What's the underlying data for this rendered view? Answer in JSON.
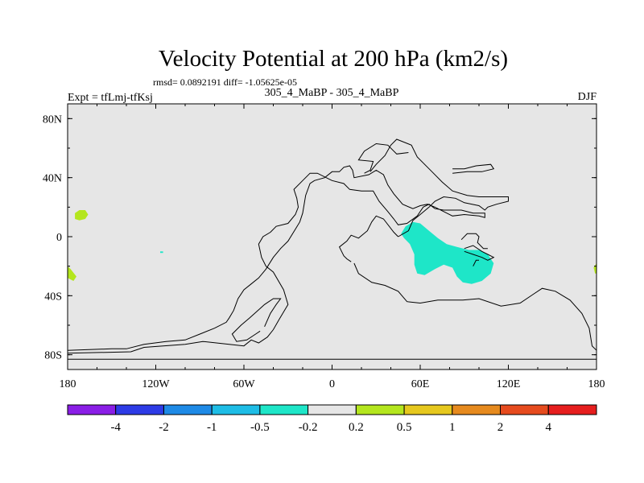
{
  "chart_data": {
    "type": "contour-map",
    "title": "Velocity Potential at 200 hPa (km2/s)",
    "stats_line": "rmsd= 0.0892191 diff= -1.05625e-05",
    "experiment": "Expt = tfLmj-tfKsj",
    "subtitle": "305_4_MaBP - 305_4_MaBP",
    "season": "DJF",
    "longitude_range": [
      -180,
      180
    ],
    "latitude_range": [
      -90,
      90
    ],
    "x_ticks": [
      {
        "value": -180,
        "label": "180"
      },
      {
        "value": -120,
        "label": "120W"
      },
      {
        "value": -60,
        "label": "60W"
      },
      {
        "value": 0,
        "label": "0"
      },
      {
        "value": 60,
        "label": "60E"
      },
      {
        "value": 120,
        "label": "120E"
      },
      {
        "value": 180,
        "label": "180"
      }
    ],
    "y_ticks": [
      {
        "value": 80,
        "label": "80N"
      },
      {
        "value": 40,
        "label": "40N"
      },
      {
        "value": 0,
        "label": "0"
      },
      {
        "value": -40,
        "label": "40S"
      },
      {
        "value": -80,
        "label": "80S"
      }
    ],
    "background_color": "#e6e6e6",
    "colorbar": {
      "colors": [
        "#8a1ee6",
        "#2d3be6",
        "#1e8ae6",
        "#1ebde6",
        "#1ee6c8",
        "#e6e6e6",
        "#b4e61e",
        "#e6c81e",
        "#e68a1e",
        "#e64b1e",
        "#e61e1e"
      ],
      "labels": [
        "-4",
        "-2",
        "-1",
        "-0.5",
        "-0.2",
        "0.2",
        "0.5",
        "1",
        "2",
        "4"
      ]
    },
    "shaded_regions": [
      {
        "name": "teal-anomaly-indian-ocean",
        "color": "#1ee6c8",
        "range": "-0.5 to -0.2",
        "polygon_lonlat": [
          [
            47,
            2
          ],
          [
            50,
            7
          ],
          [
            55,
            10
          ],
          [
            60,
            9
          ],
          [
            66,
            4
          ],
          [
            72,
            -1
          ],
          [
            78,
            -5
          ],
          [
            85,
            -7
          ],
          [
            93,
            -9
          ],
          [
            100,
            -9
          ],
          [
            106,
            -12
          ],
          [
            110,
            -18
          ],
          [
            108,
            -25
          ],
          [
            102,
            -30
          ],
          [
            95,
            -32
          ],
          [
            89,
            -31
          ],
          [
            85,
            -27
          ],
          [
            82,
            -21
          ],
          [
            76,
            -19
          ],
          [
            70,
            -22
          ],
          [
            63,
            -26
          ],
          [
            58,
            -25
          ],
          [
            56,
            -19
          ],
          [
            56,
            -12
          ],
          [
            53,
            -5
          ],
          [
            49,
            -1
          ]
        ]
      },
      {
        "name": "green-blob-north-pacific",
        "color": "#b4e61e",
        "range": "0.2 to 0.5",
        "polygon_lonlat": [
          [
            -175,
            16
          ],
          [
            -172,
            18
          ],
          [
            -168,
            18
          ],
          [
            -166,
            15
          ],
          [
            -168,
            12
          ],
          [
            -172,
            11
          ],
          [
            -175,
            12
          ]
        ]
      },
      {
        "name": "green-blob-south-pacific-west",
        "color": "#b4e61e",
        "range": "0.2 to 0.5",
        "polygon_lonlat": [
          [
            -180,
            -20
          ],
          [
            -178,
            -22
          ],
          [
            -174,
            -27
          ],
          [
            -176,
            -30
          ],
          [
            -180,
            -28
          ]
        ]
      },
      {
        "name": "green-blob-dateline-east",
        "color": "#b4e61e",
        "range": "0.2 to 0.5",
        "polygon_lonlat": [
          [
            180,
            -18
          ],
          [
            178,
            -21
          ],
          [
            179,
            -25
          ],
          [
            180,
            -25
          ]
        ]
      },
      {
        "name": "teal-speck-pacific",
        "color": "#1ee6c8",
        "range": "-0.5 to -0.2",
        "polygon_lonlat": [
          [
            -117,
            -10
          ],
          [
            -115,
            -10
          ],
          [
            -115,
            -11
          ],
          [
            -117,
            -11
          ]
        ]
      }
    ],
    "outlines_lonlat": [
      [
        [
          -180,
          -79
        ],
        [
          -137,
          -78
        ],
        [
          -128,
          -75
        ],
        [
          -100,
          -73
        ],
        [
          -88,
          -71
        ],
        [
          -70,
          -73
        ],
        [
          -60,
          -74
        ],
        [
          -55,
          -70
        ],
        [
          -50,
          -72
        ],
        [
          -44,
          -68
        ],
        [
          -40,
          -63
        ],
        [
          -36,
          -56
        ],
        [
          -30,
          -46
        ],
        [
          -33,
          -36
        ],
        [
          -40,
          -24
        ],
        [
          -45,
          -20
        ],
        [
          -48,
          -14
        ],
        [
          -50,
          -5
        ],
        [
          -47,
          0
        ],
        [
          -42,
          3
        ],
        [
          -38,
          7
        ],
        [
          -30,
          9
        ],
        [
          -25,
          15
        ],
        [
          -23,
          20
        ],
        [
          -24,
          26
        ],
        [
          -26,
          32
        ],
        [
          -20,
          38
        ],
        [
          -15,
          43
        ],
        [
          -10,
          43
        ],
        [
          0,
          38
        ],
        [
          8,
          36
        ],
        [
          12,
          32
        ],
        [
          20,
          31
        ],
        [
          28,
          31
        ],
        [
          32,
          24
        ],
        [
          38,
          17
        ],
        [
          42,
          12
        ],
        [
          45,
          8
        ],
        [
          51,
          9
        ],
        [
          58,
          14
        ],
        [
          62,
          20
        ],
        [
          66,
          22
        ],
        [
          70,
          19
        ],
        [
          76,
          18
        ],
        [
          80,
          18
        ],
        [
          88,
          18
        ],
        [
          96,
          16
        ],
        [
          104,
          16
        ],
        [
          104,
          13
        ],
        [
          100,
          14
        ],
        [
          90,
          15
        ],
        [
          82,
          14
        ],
        [
          76,
          17
        ],
        [
          70,
          20
        ],
        [
          65,
          22
        ],
        [
          60,
          21
        ],
        [
          55,
          19
        ],
        [
          48,
          22
        ],
        [
          42,
          29
        ],
        [
          38,
          35
        ],
        [
          35,
          42
        ],
        [
          30,
          45
        ],
        [
          25,
          42
        ],
        [
          15,
          40
        ],
        [
          14,
          45
        ],
        [
          12,
          48
        ],
        [
          8,
          47
        ],
        [
          5,
          44
        ],
        [
          0,
          44
        ],
        [
          -5,
          40
        ],
        [
          -12,
          38
        ],
        [
          -15,
          36
        ],
        [
          -18,
          28
        ],
        [
          -20,
          16
        ],
        [
          -22,
          10
        ],
        [
          -25,
          5
        ],
        [
          -30,
          -3
        ],
        [
          -35,
          -8
        ],
        [
          -40,
          -14
        ],
        [
          -45,
          -22
        ],
        [
          -50,
          -28
        ],
        [
          -55,
          -32
        ],
        [
          -60,
          -36
        ],
        [
          -64,
          -42
        ],
        [
          -67,
          -50
        ],
        [
          -70,
          -55
        ],
        [
          -72,
          -58
        ],
        [
          -80,
          -62
        ],
        [
          -90,
          -66
        ],
        [
          -100,
          -70
        ],
        [
          -113,
          -71
        ],
        [
          -128,
          -73
        ],
        [
          -140,
          -76
        ],
        [
          -150,
          -76
        ],
        [
          -180,
          -77
        ]
      ],
      [
        [
          -180,
          -83
        ],
        [
          180,
          -83
        ]
      ],
      [
        [
          -46,
          -61
        ],
        [
          -42,
          -52
        ],
        [
          -38,
          -46
        ],
        [
          -35,
          -42
        ],
        [
          -40,
          -42
        ],
        [
          -46,
          -46
        ],
        [
          -56,
          -55
        ],
        [
          -62,
          -60
        ],
        [
          -68,
          -66
        ],
        [
          -65,
          -71
        ],
        [
          -58,
          -70
        ],
        [
          -52,
          -66
        ],
        [
          -49,
          -64
        ]
      ],
      [
        [
          15,
          -18
        ],
        [
          18,
          -25
        ],
        [
          27,
          -31
        ],
        [
          36,
          -33
        ],
        [
          45,
          -37
        ],
        [
          51,
          -44
        ],
        [
          60,
          -45
        ],
        [
          72,
          -43
        ],
        [
          78,
          -43
        ],
        [
          89,
          -43
        ],
        [
          100,
          -42
        ],
        [
          115,
          -47
        ],
        [
          128,
          -45
        ],
        [
          137,
          -39
        ],
        [
          143,
          -35
        ],
        [
          152,
          -37
        ],
        [
          162,
          -43
        ],
        [
          170,
          -52
        ],
        [
          175,
          -62
        ],
        [
          177,
          -74
        ],
        [
          180,
          -77
        ]
      ],
      [
        [
          13,
          -17
        ],
        [
          10,
          -15
        ],
        [
          8,
          -13
        ],
        [
          5,
          -7
        ],
        [
          10,
          -3
        ],
        [
          13,
          1
        ],
        [
          18,
          -1
        ],
        [
          24,
          4
        ],
        [
          27,
          10
        ],
        [
          30,
          14
        ],
        [
          35,
          12
        ],
        [
          42,
          3
        ],
        [
          45,
          0
        ]
      ],
      [
        [
          45,
          0
        ],
        [
          52,
          4
        ],
        [
          55,
          11
        ],
        [
          60,
          15
        ],
        [
          66,
          20
        ],
        [
          70,
          24
        ],
        [
          76,
          27
        ],
        [
          84,
          26
        ],
        [
          90,
          23
        ],
        [
          100,
          21
        ],
        [
          104,
          18
        ],
        [
          106,
          20
        ],
        [
          112,
          22
        ],
        [
          120,
          24
        ],
        [
          120,
          27
        ],
        [
          110,
          27
        ],
        [
          100,
          27
        ],
        [
          92,
          28
        ],
        [
          82,
          31
        ],
        [
          75,
          37
        ],
        [
          68,
          44
        ],
        [
          58,
          54
        ],
        [
          54,
          62
        ],
        [
          44,
          66
        ],
        [
          40,
          62
        ],
        [
          36,
          55
        ],
        [
          30,
          49
        ],
        [
          26,
          44
        ]
      ],
      [
        [
          90,
          -8
        ],
        [
          96,
          -6
        ],
        [
          102,
          -10
        ],
        [
          106,
          -12
        ],
        [
          110,
          -14
        ],
        [
          106,
          -16
        ],
        [
          102,
          -14
        ],
        [
          96,
          -12
        ],
        [
          90,
          -10
        ]
      ],
      [
        [
          88,
          -2
        ],
        [
          92,
          2
        ],
        [
          98,
          2
        ],
        [
          100,
          0
        ],
        [
          99,
          -4
        ],
        [
          103,
          -8
        ],
        [
          106,
          -8
        ]
      ],
      [
        [
          82,
          46
        ],
        [
          90,
          46
        ],
        [
          98,
          48
        ],
        [
          108,
          49
        ],
        [
          110,
          46
        ],
        [
          102,
          44
        ],
        [
          92,
          44
        ],
        [
          82,
          43
        ]
      ],
      [
        [
          52,
          57
        ],
        [
          44,
          56
        ],
        [
          38,
          62
        ],
        [
          30,
          63
        ],
        [
          22,
          58
        ],
        [
          18,
          52
        ],
        [
          28,
          51
        ],
        [
          26,
          45
        ],
        [
          22,
          43
        ]
      ],
      [
        [
          96,
          -20
        ],
        [
          98,
          -16
        ],
        [
          100,
          -16
        ]
      ]
    ]
  }
}
